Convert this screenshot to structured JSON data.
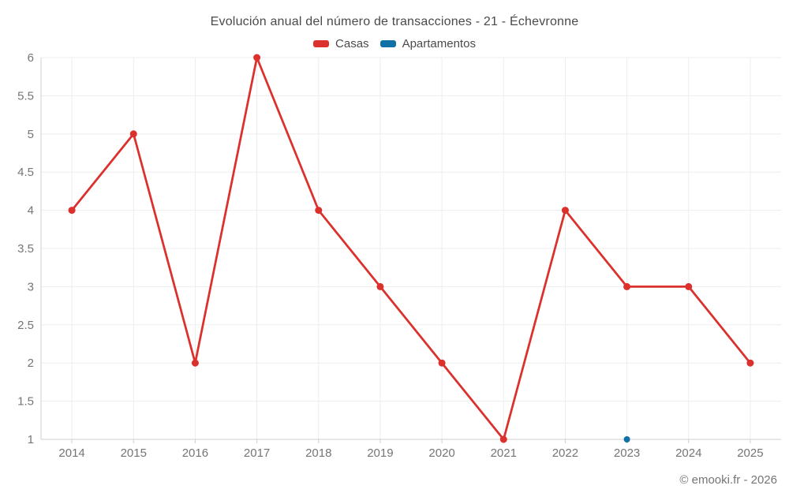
{
  "chart_data": {
    "type": "line",
    "title": "Evolución anual del número de transacciones - 21 - Échevronne",
    "categories": [
      "2014",
      "2015",
      "2016",
      "2017",
      "2018",
      "2019",
      "2020",
      "2021",
      "2022",
      "2023",
      "2024",
      "2025"
    ],
    "series": [
      {
        "name": "Casas",
        "color": "#db302c",
        "marker_radius": 4.5,
        "values": [
          4,
          5,
          2,
          6,
          4,
          3,
          2,
          1,
          4,
          3,
          3,
          2
        ]
      },
      {
        "name": "Apartamentos",
        "color": "#1171a6",
        "marker_radius": 4,
        "values": [
          null,
          null,
          null,
          null,
          null,
          null,
          null,
          null,
          null,
          1,
          null,
          null
        ]
      }
    ],
    "xlabel": "",
    "ylabel": "",
    "ylim": [
      1,
      6
    ],
    "ytick_step": 0.5,
    "grid": true,
    "legend_position": "top"
  },
  "style": {
    "grid_color": "#ededed",
    "axis_color": "#cfcfcf",
    "label_color": "#757575"
  },
  "footer": {
    "copyright": "© emooki.fr - 2026"
  }
}
